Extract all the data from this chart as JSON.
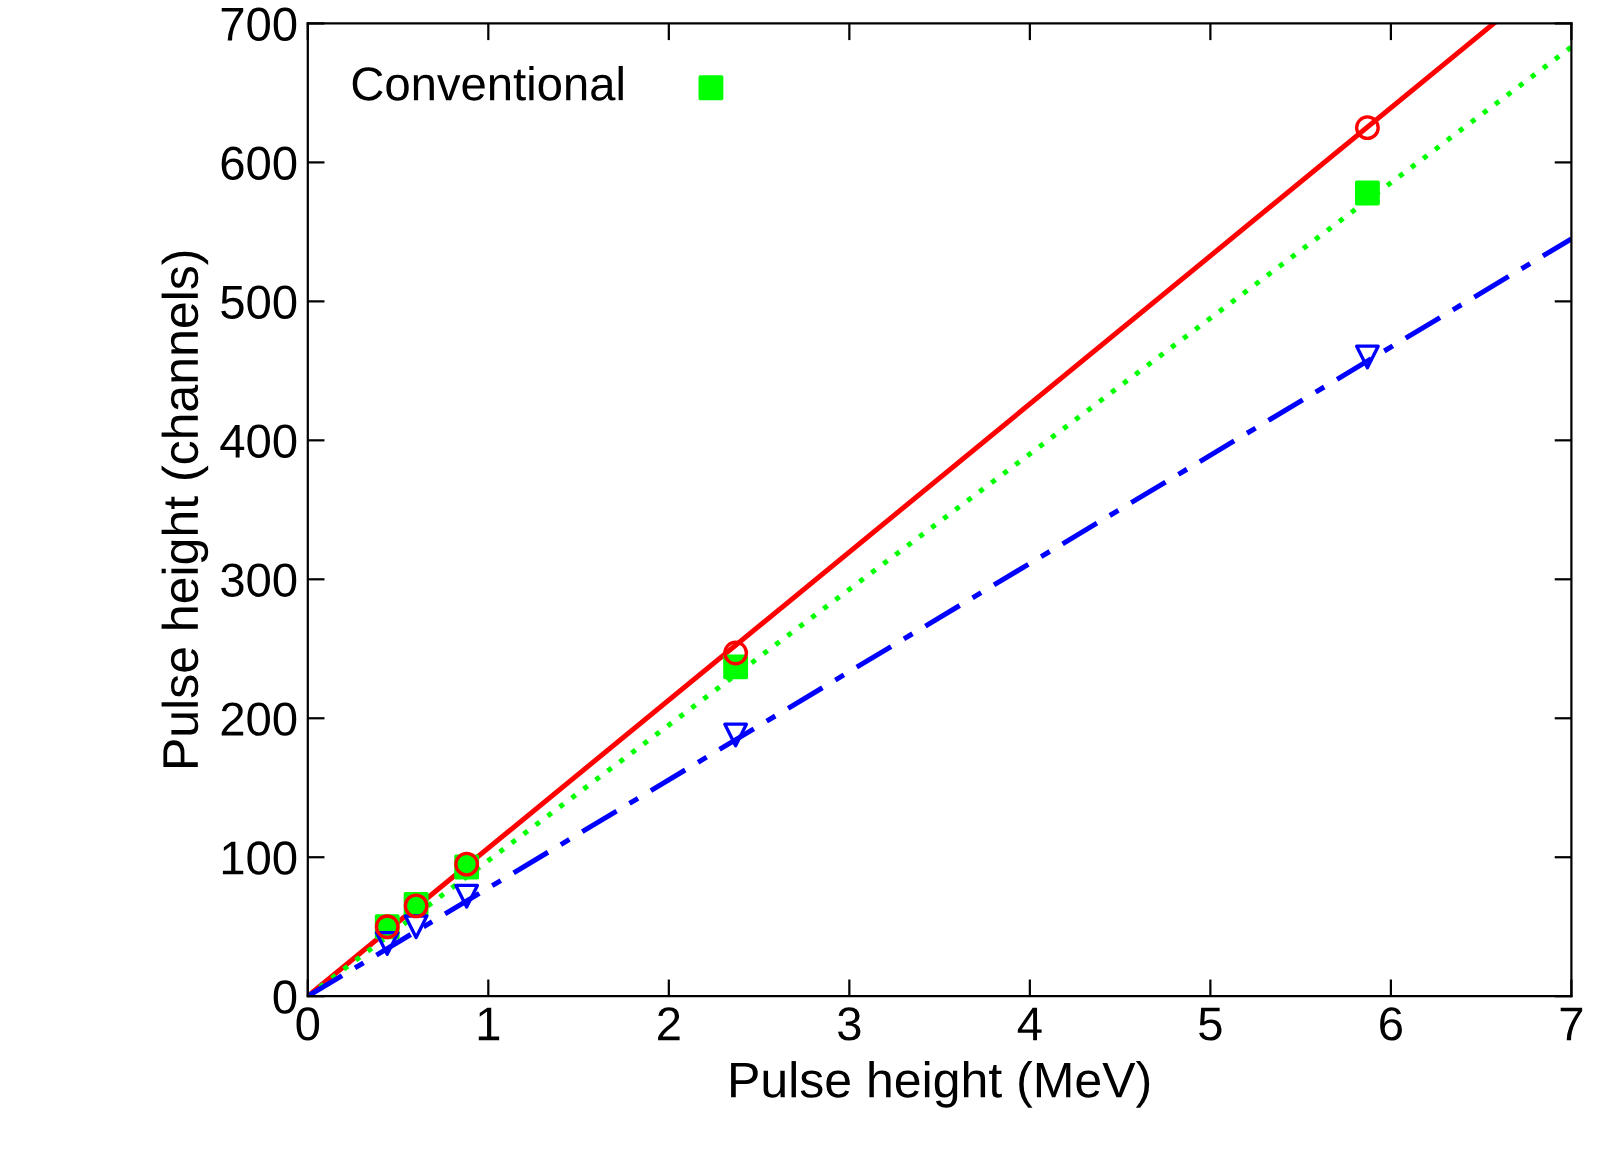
{
  "chart_data": {
    "type": "scatter",
    "xlabel": "Pulse height (MeV)",
    "ylabel": "Pulse height (channels)",
    "xlim": [
      0,
      7
    ],
    "ylim": [
      0,
      700
    ],
    "xticks": [
      0,
      1,
      2,
      3,
      4,
      5,
      6,
      7
    ],
    "yticks": [
      0,
      100,
      200,
      300,
      400,
      500,
      600,
      700
    ],
    "grid": false,
    "legend": "top left",
    "series": [
      {
        "color": "#ff0000",
        "marker": "circle",
        "x": [
          0.44,
          0.6,
          0.88,
          2.37,
          5.87
        ],
        "values": [
          50,
          65,
          95,
          247,
          625
        ]
      },
      {
        "color": "#0000ff",
        "marker": "triangle",
        "x": [
          0.44,
          0.6,
          0.88,
          2.37,
          5.87
        ],
        "values": [
          38,
          50,
          72,
          188,
          460
        ]
      },
      {
        "name": "Conventional",
        "color": "#00ff00",
        "marker": "square",
        "x": [
          0.44,
          0.6,
          0.88,
          2.37,
          5.87
        ],
        "values": [
          50,
          66,
          93,
          237,
          578
        ]
      },
      {
        "type": "line",
        "color": "#ff0000",
        "line_style": "solid",
        "x": [
          0,
          6.57
        ],
        "values": [
          0,
          700
        ]
      },
      {
        "type": "line",
        "color": "#00ff00",
        "line_style": "dotted",
        "x": [
          0,
          7
        ],
        "values": [
          0,
          683
        ]
      },
      {
        "type": "line",
        "color": "#0000ff",
        "line_style": "dashed",
        "x": [
          0,
          7
        ],
        "values": [
          0,
          545
        ]
      }
    ]
  }
}
